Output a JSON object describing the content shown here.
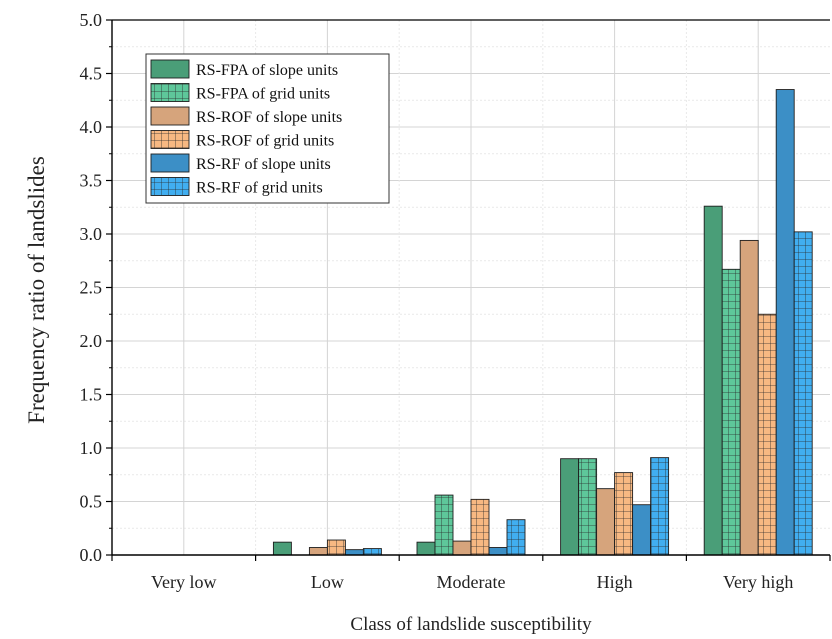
{
  "chart_data": {
    "type": "bar",
    "xlabel": "Class of landslide susceptibility",
    "ylabel": "Frequency ratio of landslides",
    "ylim": [
      0,
      5.0
    ],
    "yticks": [
      "0.0",
      "0.5",
      "1.0",
      "1.5",
      "2.0",
      "2.5",
      "3.0",
      "3.5",
      "4.0",
      "4.5",
      "5.0"
    ],
    "grid": true,
    "legend_position": "top-left",
    "categories": [
      "Very low",
      "Low",
      "Moderate",
      "High",
      "Very high"
    ],
    "series": [
      {
        "name": "RS-FPA of slope units",
        "color": "#4a9e78",
        "pattern": "solid",
        "values": [
          0.0,
          0.12,
          0.12,
          0.9,
          3.26
        ]
      },
      {
        "name": "RS-FPA of grid units",
        "color": "#5ec79a",
        "pattern": "grid",
        "values": [
          0.0,
          0.0,
          0.56,
          0.9,
          2.67
        ]
      },
      {
        "name": "RS-ROF of slope units",
        "color": "#d6a47c",
        "pattern": "solid",
        "values": [
          0.0,
          0.07,
          0.13,
          0.62,
          2.94
        ]
      },
      {
        "name": "RS-ROF of grid units",
        "color": "#f7b882",
        "pattern": "grid",
        "values": [
          0.0,
          0.14,
          0.52,
          0.77,
          2.25
        ]
      },
      {
        "name": "RS-RF of slope units",
        "color": "#3c8fc6",
        "pattern": "solid",
        "values": [
          0.0,
          0.05,
          0.07,
          0.47,
          4.35
        ]
      },
      {
        "name": "RS-RF of grid units",
        "color": "#41aef0",
        "pattern": "grid",
        "values": [
          0.0,
          0.06,
          0.33,
          0.91,
          3.02
        ]
      }
    ]
  }
}
